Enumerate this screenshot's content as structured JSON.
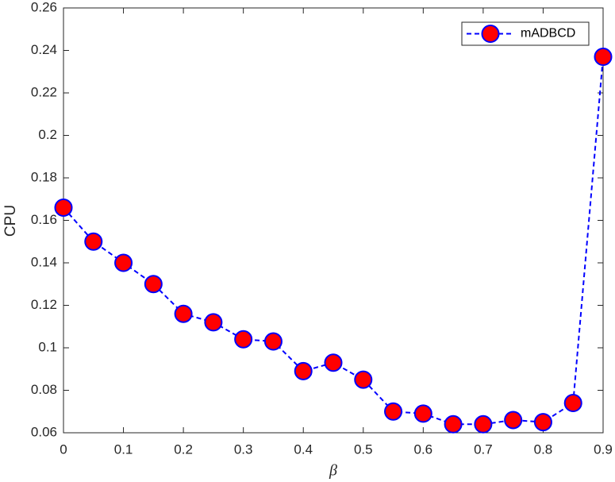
{
  "chart_data": {
    "type": "line",
    "xlabel": "β",
    "ylabel": "CPU",
    "x": [
      0,
      0.05,
      0.1,
      0.15,
      0.2,
      0.25,
      0.3,
      0.35,
      0.4,
      0.45,
      0.5,
      0.55,
      0.6,
      0.65,
      0.7,
      0.75,
      0.8,
      0.85,
      0.9
    ],
    "series": [
      {
        "name": "mADBCD",
        "color": "#0000ff",
        "marker_color": "#ff0000",
        "values": [
          0.166,
          0.15,
          0.14,
          0.13,
          0.116,
          0.112,
          0.104,
          0.103,
          0.089,
          0.093,
          0.085,
          0.07,
          0.069,
          0.064,
          0.064,
          0.066,
          0.065,
          0.074,
          0.237
        ]
      }
    ],
    "xlim": [
      0,
      0.9
    ],
    "xticks": [
      0,
      0.1,
      0.2,
      0.3,
      0.4,
      0.5,
      0.6,
      0.7,
      0.8,
      0.9
    ],
    "ylim": [
      0.06,
      0.26
    ],
    "yticks": [
      0.06,
      0.08,
      0.1,
      0.12,
      0.14,
      0.16,
      0.18,
      0.2,
      0.22,
      0.24,
      0.26
    ],
    "grid": false,
    "legend": "upper-right"
  }
}
